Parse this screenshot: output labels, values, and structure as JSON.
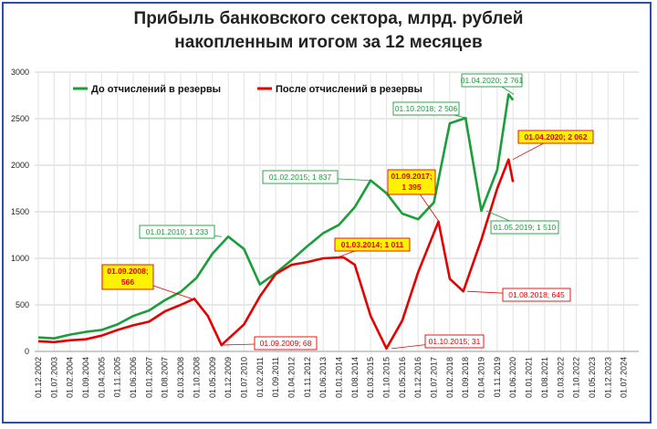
{
  "chart_data": {
    "type": "line",
    "title_line1": "Прибыль банковского сектора, млрд. рублей",
    "title_line2": "накопленным итогом за 12 месяцев",
    "xlabel": "",
    "ylabel": "",
    "ylim": [
      0,
      3000
    ],
    "yticks": [
      "0",
      "500",
      "1000",
      "1500",
      "2000",
      "2500",
      "3000"
    ],
    "xticks": [
      "01.12.2002",
      "01.07.2003",
      "01.02.2004",
      "01.09.2004",
      "01.04.2005",
      "01.11.2005",
      "01.06.2006",
      "01.01.2007",
      "01.08.2007",
      "01.03.2008",
      "01.10.2008",
      "01.05.2009",
      "01.12.2009",
      "01.07.2010",
      "01.02.2011",
      "01.09.2011",
      "01.04.2012",
      "01.11.2012",
      "01.06.2013",
      "01.01.2014",
      "01.08.2014",
      "01.03.2015",
      "01.10.2015",
      "01.05.2016",
      "01.12.2016",
      "01.07.2017",
      "01.02.2018",
      "01.09.2018",
      "01.04.2019",
      "01.11.2019",
      "01.06.2020",
      "01.01.2021",
      "01.08.2021",
      "01.03.2022",
      "01.10.2022",
      "01.05.2023",
      "01.12.2023",
      "01.07.2024"
    ],
    "grid": true,
    "legend_position": "top-left",
    "series": [
      {
        "name": "До отчислений в резервы",
        "color": "#1a9e3a",
        "x": [
          "12.2002",
          "07.2003",
          "02.2004",
          "09.2004",
          "04.2005",
          "11.2005",
          "06.2006",
          "01.2007",
          "08.2007",
          "03.2008",
          "10.2008",
          "05.2009",
          "12.2009",
          "07.2010",
          "02.2011",
          "09.2011",
          "04.2012",
          "11.2012",
          "06.2013",
          "01.2014",
          "08.2014",
          "03.2015",
          "10.2015",
          "05.2016",
          "12.2016",
          "07.2017",
          "02.2018",
          "09.2018",
          "04.2019",
          "11.2019",
          "04.2020",
          "06.2020"
        ],
        "values": [
          150,
          140,
          180,
          210,
          230,
          290,
          380,
          440,
          550,
          640,
          790,
          1050,
          1233,
          1100,
          720,
          840,
          980,
          1130,
          1270,
          1360,
          1550,
          1837,
          1700,
          1480,
          1420,
          1600,
          2450,
          2506,
          1510,
          1950,
          2761,
          2700
        ]
      },
      {
        "name": "После отчислений в резервы",
        "color": "#e60000",
        "x": [
          "12.2002",
          "07.2003",
          "02.2004",
          "09.2004",
          "04.2005",
          "11.2005",
          "06.2006",
          "01.2007",
          "08.2007",
          "03.2008",
          "09.2008",
          "03.2009",
          "09.2009",
          "07.2010",
          "02.2011",
          "09.2011",
          "04.2012",
          "11.2012",
          "06.2013",
          "03.2014",
          "08.2014",
          "03.2015",
          "10.2015",
          "05.2016",
          "12.2016",
          "09.2017",
          "02.2018",
          "08.2018",
          "04.2019",
          "11.2019",
          "04.2020",
          "06.2020"
        ],
        "values": [
          110,
          100,
          120,
          130,
          170,
          230,
          280,
          320,
          430,
          500,
          566,
          380,
          68,
          290,
          590,
          830,
          930,
          960,
          1000,
          1011,
          930,
          380,
          31,
          330,
          850,
          1395,
          780,
          645,
          1200,
          1750,
          2062,
          1820
        ]
      }
    ],
    "annotations": [
      {
        "label": "01.01.2010; 1 233",
        "series": "green"
      },
      {
        "label": "01.02.2015; 1 837",
        "series": "green"
      },
      {
        "label": "01.10.2018; 2 506",
        "series": "green"
      },
      {
        "label": "01.04.2020; 2 761",
        "series": "green"
      },
      {
        "label": "01.05.2019; 1 510",
        "series": "green"
      },
      {
        "label": "01.09.2008;\n566",
        "series": "red-highlight"
      },
      {
        "label": "01.03.2014; 1 011",
        "series": "red-highlight"
      },
      {
        "label": "01.09.2017;\n1 395",
        "series": "red-highlight"
      },
      {
        "label": "01.04.2020; 2 062",
        "series": "red-highlight"
      },
      {
        "label": "01.09.2009; 68",
        "series": "red"
      },
      {
        "label": "01.10.2015; 31",
        "series": "red"
      },
      {
        "label": "01.08.2018; 645",
        "series": "red"
      }
    ]
  }
}
